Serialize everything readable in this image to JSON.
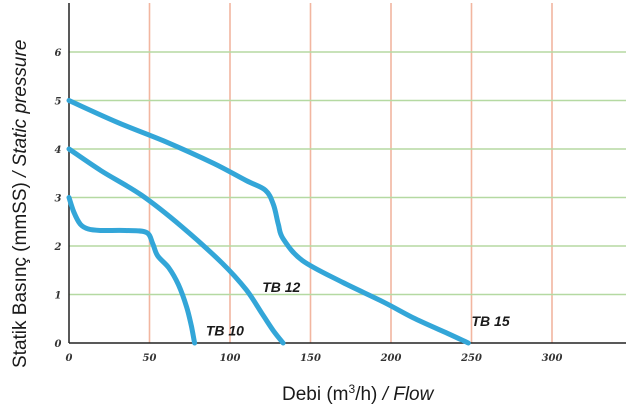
{
  "chart_data": {
    "type": "line",
    "xlabel_main": "Debi (m",
    "xlabel_sup": "3",
    "xlabel_unit_end": "/h)",
    "xlabel_italic": " / Flow",
    "ylabel_main": "Statik Basınç (mmSS)",
    "ylabel_italic": " / Static pressure",
    "x_ticks": [
      "0",
      "50",
      "100",
      "150",
      "200",
      "250",
      "300"
    ],
    "y_ticks": [
      "0",
      "1",
      "2",
      "3",
      "4",
      "5",
      "6"
    ],
    "xlim": [
      0,
      345
    ],
    "ylim": [
      0,
      7
    ],
    "colors": {
      "curve": "#33a6d8",
      "h_grid": "#b5d9a2",
      "v_grid": "#f2b6a0",
      "axis": "#222222"
    },
    "series": [
      {
        "name": "TB 10",
        "x": [
          0,
          3,
          7,
          12,
          20,
          35,
          48,
          52,
          55,
          62,
          68,
          73,
          76,
          78
        ],
        "y": [
          3.0,
          2.7,
          2.45,
          2.35,
          2.32,
          2.32,
          2.28,
          2.05,
          1.8,
          1.55,
          1.2,
          0.75,
          0.35,
          0
        ]
      },
      {
        "name": "TB 12",
        "x": [
          0,
          20,
          45,
          70,
          95,
          110,
          120,
          127,
          133
        ],
        "y": [
          4.0,
          3.55,
          3.05,
          2.4,
          1.65,
          1.1,
          0.6,
          0.25,
          0
        ]
      },
      {
        "name": "TB 15",
        "x": [
          0,
          30,
          60,
          90,
          110,
          122,
          127,
          130,
          133,
          145,
          170,
          195,
          215,
          235,
          248
        ],
        "y": [
          5.0,
          4.55,
          4.15,
          3.7,
          3.35,
          3.15,
          2.85,
          2.45,
          2.15,
          1.7,
          1.25,
          0.85,
          0.5,
          0.2,
          0
        ]
      }
    ],
    "label_positions": [
      {
        "name": "TB 10",
        "x": 85,
        "y": 0.15
      },
      {
        "name": "TB 12",
        "x": 120,
        "y": 1.05
      },
      {
        "name": "TB 15",
        "x": 250,
        "y": 0.35
      }
    ]
  }
}
